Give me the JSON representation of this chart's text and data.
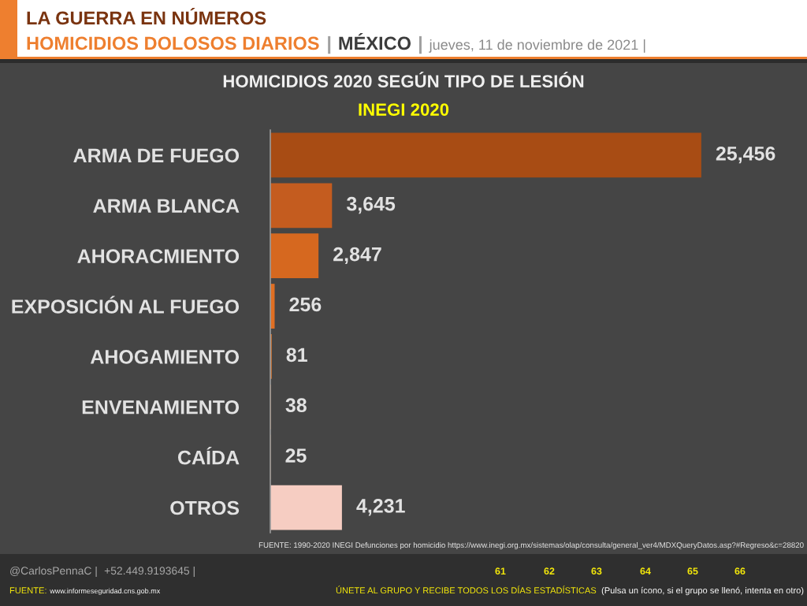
{
  "chart_data": {
    "type": "bar",
    "orientation": "horizontal",
    "title": "HOMICIDIOS 2020 SEGÚN TIPO DE LESIÓN",
    "subtitle": "INEGI 2020",
    "categories": [
      "ARMA DE FUEGO",
      "ARMA BLANCA",
      "AHORACMIENTO",
      "EXPOSICIÓN AL FUEGO",
      "AHOGAMIENTO",
      "ENVENAMIENTO",
      "CAÍDA",
      "OTROS"
    ],
    "values": [
      25456,
      3645,
      2847,
      256,
      81,
      38,
      25,
      4231
    ],
    "colors": [
      "#a84c14",
      "#c45c1f",
      "#d6681f",
      "#e06f23",
      "#e07a30",
      "#e07a30",
      "#e07a30",
      "#f6cdc2"
    ],
    "value_labels": [
      "25,456",
      "3,645",
      "2,847",
      "256",
      "81",
      "38",
      "25",
      "4,231"
    ],
    "tick_labels": "y",
    "annotations": [
      "LA GUERRA EN NÚMEROS",
      "HOMICIDIOS DOLOSOS DIARIOS",
      "|",
      "MÉXICO",
      "|",
      "jueves, 11 de noviembre de 2021 |",
      "FUENTE: 1990-2020 INEGI Defunciones por homicidio https://www.inegi.org.mx/sistemas/olap/consulta/general_ver4/MDXQueryDatos.asp?#Regreso&c=28820",
      "@CarlosPennaC |",
      "+52.449.9193645 |",
      "61",
      "62",
      "63",
      "64",
      "65",
      "66",
      "FUENTE:",
      "www.informeseguridad.cns.gob.mx",
      "ÚNETE AL GRUPO Y RECIBE TODOS LOS DÍAS ESTADÍSTICAS",
      "(Pulsa un ícono, si el grupo se llenó, intenta en otro)"
    ]
  }
}
